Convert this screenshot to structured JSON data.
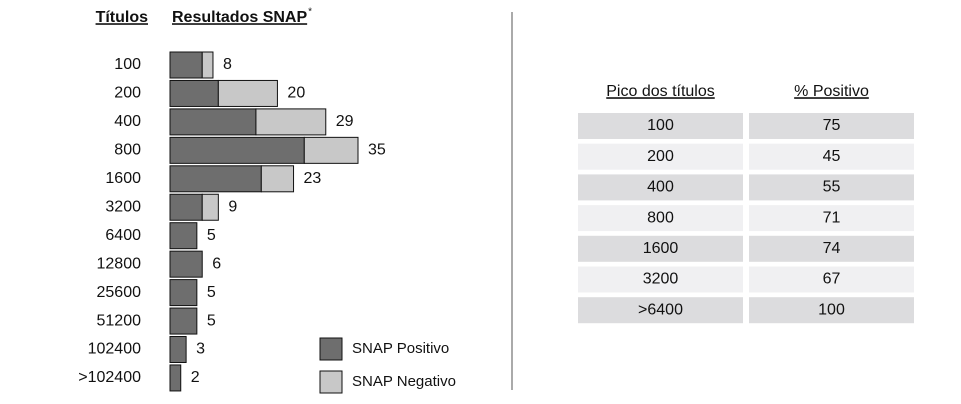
{
  "chart_data": {
    "type": "bar",
    "orientation": "horizontal",
    "stacked": true,
    "category_header": "Títulos",
    "title": "Resultados SNAP",
    "title_mark": "*",
    "categories": [
      "100",
      "200",
      "400",
      "800",
      "1600",
      "3200",
      "6400",
      "12800",
      "25600",
      "51200",
      "102400",
      ">102400"
    ],
    "series": [
      {
        "name": "SNAP Positivo",
        "color": "#6e6e6e",
        "values": [
          6,
          9,
          16,
          25,
          17,
          6,
          5,
          6,
          5,
          5,
          3,
          2
        ]
      },
      {
        "name": "SNAP Negativo",
        "color": "#c8c8c8",
        "values": [
          2,
          11,
          13,
          10,
          6,
          3,
          0,
          0,
          0,
          0,
          0,
          0
        ]
      }
    ],
    "totals": [
      8,
      20,
      29,
      35,
      23,
      9,
      5,
      6,
      5,
      5,
      3,
      2
    ],
    "legend": "bottom-right"
  },
  "table": {
    "columns": [
      "Pico dos títulos",
      "% Positivo"
    ],
    "rows": [
      [
        "100",
        "75"
      ],
      [
        "200",
        "45"
      ],
      [
        "400",
        "55"
      ],
      [
        "800",
        "71"
      ],
      [
        "1600",
        "74"
      ],
      [
        "3200",
        "67"
      ],
      [
        ">6400",
        "100"
      ]
    ]
  }
}
